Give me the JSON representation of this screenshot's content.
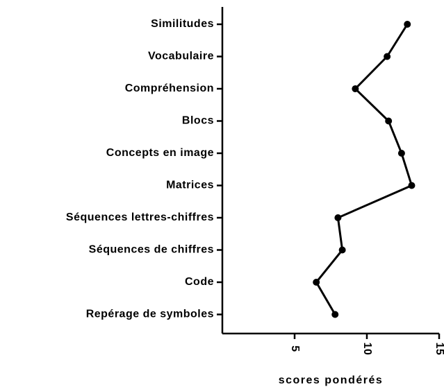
{
  "chart_data": {
    "type": "line",
    "categories": [
      "Similitudes",
      "Vocabulaire",
      "Compréhension",
      "Blocs",
      "Concepts en image",
      "Matrices",
      "Séquences lettres-chiffres",
      "Séquences de chiffres",
      "Code",
      "Repérage de symboles"
    ],
    "series": [
      {
        "name": null,
        "color": "#000000",
        "values": [
          12.8,
          11.4,
          9.2,
          11.5,
          12.4,
          13.1,
          8.0,
          8.3,
          6.5,
          7.8
        ]
      }
    ],
    "xlabel": "scores pondérés",
    "xlim": [
      0,
      15
    ],
    "xticks": [
      5,
      10,
      15
    ]
  }
}
